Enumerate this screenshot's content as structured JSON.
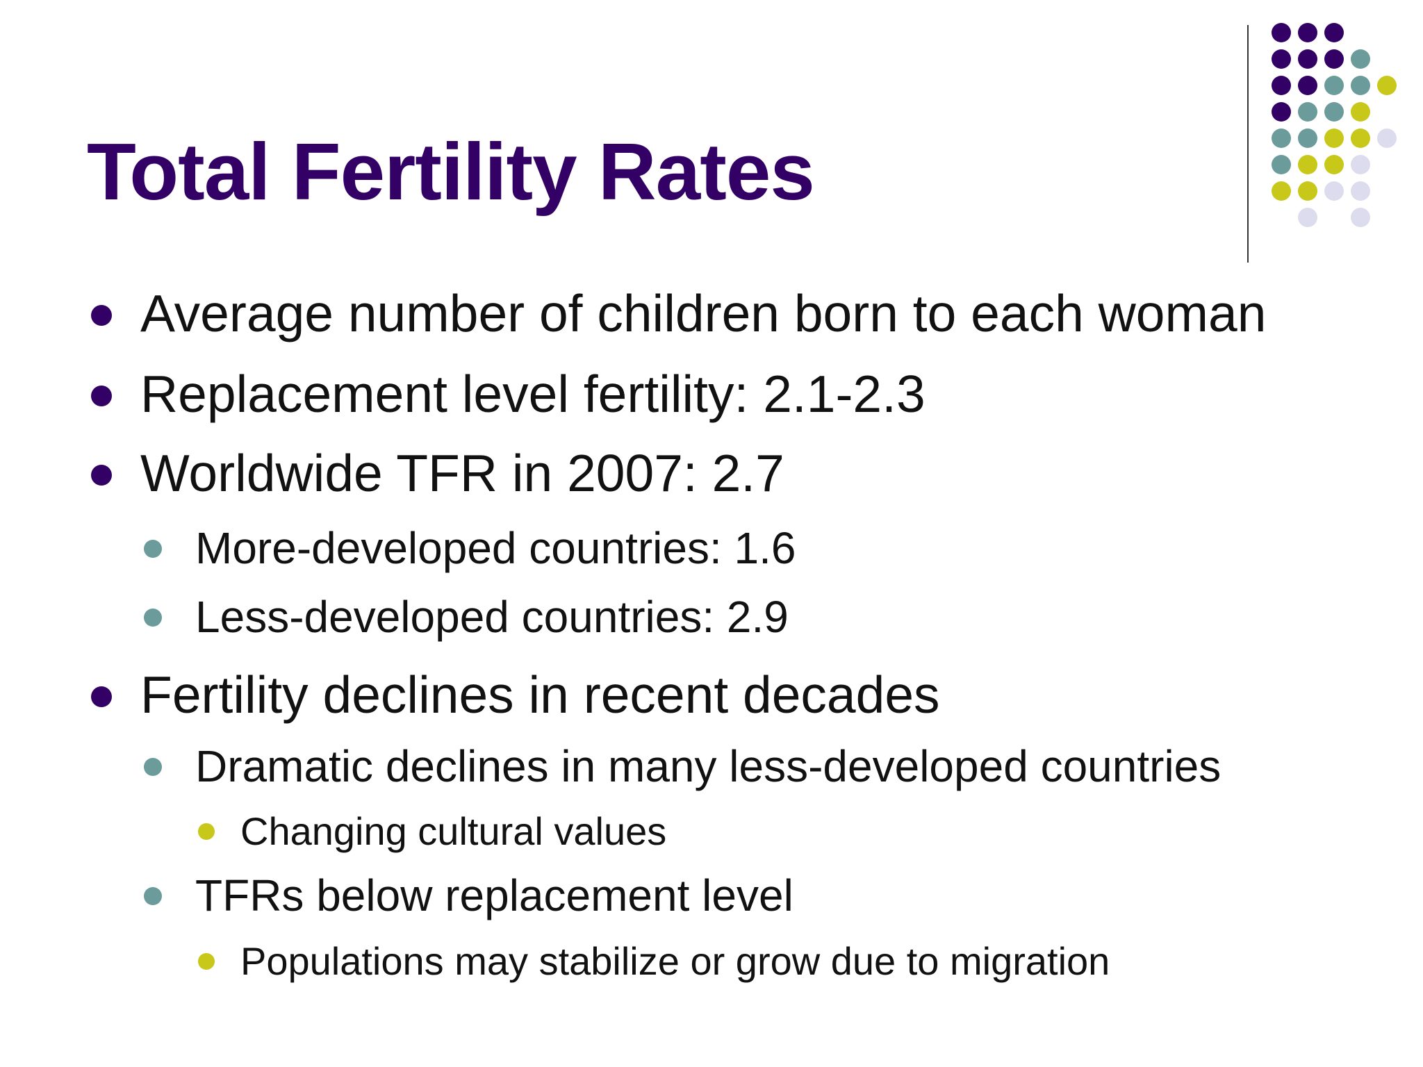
{
  "slide": {
    "title": "Total Fertility Rates",
    "colors": {
      "title": "#330066",
      "level1_bullet": "#330066",
      "level2_bullet": "#6b9b9b",
      "level3_bullet": "#c8c81a",
      "decor_purple": "#330066",
      "decor_teal": "#6b9b9b",
      "decor_lime": "#c8c81a",
      "decor_lavender": "#dcdcee"
    },
    "bullets": [
      {
        "level": 1,
        "text": "Average number of children born to each woman"
      },
      {
        "level": 1,
        "text": "Replacement level fertility: 2.1-2.3"
      },
      {
        "level": 1,
        "text": "Worldwide TFR in 2007: 2.7"
      },
      {
        "level": 2,
        "text": "More-developed countries: 1.6"
      },
      {
        "level": 2,
        "text": "Less-developed countries: 2.9"
      },
      {
        "level": 1,
        "text": "Fertility declines in recent decades"
      },
      {
        "level": 2,
        "text": "Dramatic declines in many less-developed countries"
      },
      {
        "level": 3,
        "text": "Changing cultural values"
      },
      {
        "level": 2,
        "text": "TFRs below replacement level"
      },
      {
        "level": 3,
        "text": "Populations may stabilize or grow due to migration"
      }
    ]
  }
}
